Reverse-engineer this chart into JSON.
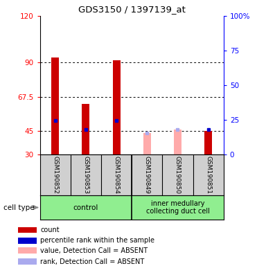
{
  "title": "GDS3150 / 1397139_at",
  "samples": [
    "GSM190852",
    "GSM190853",
    "GSM190854",
    "GSM190849",
    "GSM190850",
    "GSM190851"
  ],
  "ylim_left": [
    30,
    120
  ],
  "yticks_left": [
    30,
    45,
    67.5,
    90,
    120
  ],
  "ytick_labels_left": [
    "30",
    "45",
    "67.5",
    "90",
    "120"
  ],
  "ylim_right": [
    0,
    100
  ],
  "yticks_right": [
    0,
    25,
    50,
    75,
    100
  ],
  "ytick_labels_right": [
    "0",
    "25",
    "50",
    "75",
    "100%"
  ],
  "hlines": [
    45,
    67.5,
    90
  ],
  "bar_color_present": "#cc0000",
  "bar_color_absent": "#ffaaaa",
  "dot_color_present": "#0000cc",
  "dot_color_absent": "#aaaaee",
  "bar_width": 0.25,
  "values": [
    93,
    63,
    91,
    44,
    46,
    45
  ],
  "ranks": [
    52,
    46,
    52,
    44,
    46,
    46
  ],
  "absent_flags": [
    false,
    false,
    false,
    true,
    true,
    false
  ],
  "sample_bg_color": "#d0d0d0",
  "group_bg_color": "#90ee90",
  "cell_type_label": "cell type",
  "group_divider": 2.5,
  "group1_label": "control",
  "group2_label": "inner medullary\ncollecting duct cell",
  "legend_items": [
    {
      "label": "count",
      "color": "#cc0000"
    },
    {
      "label": "percentile rank within the sample",
      "color": "#0000cc"
    },
    {
      "label": "value, Detection Call = ABSENT",
      "color": "#ffaaaa"
    },
    {
      "label": "rank, Detection Call = ABSENT",
      "color": "#aaaaee"
    }
  ]
}
